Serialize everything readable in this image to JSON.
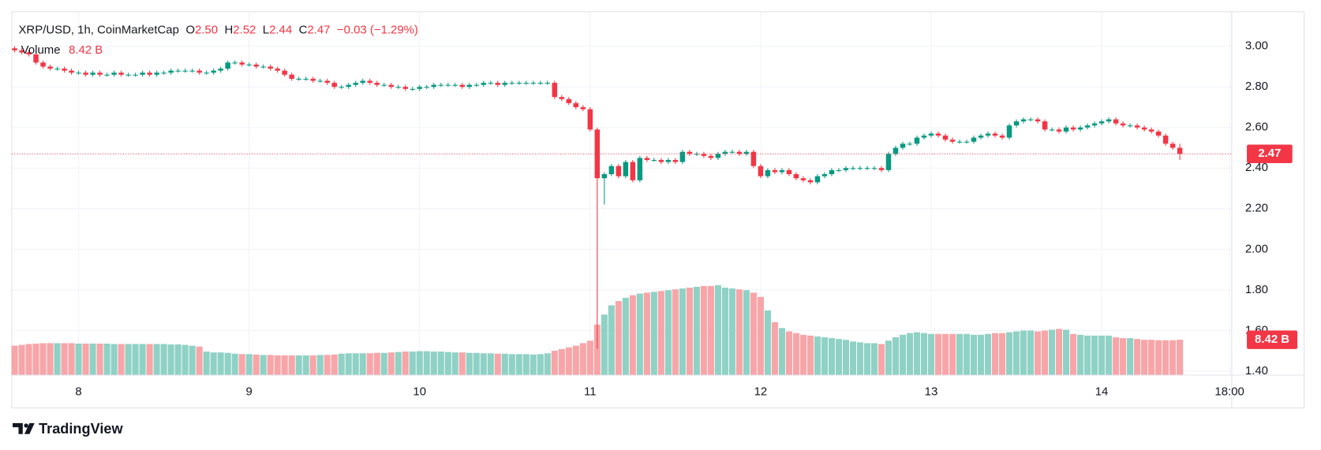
{
  "chart_data": {
    "type": "candlestick",
    "legend": {
      "symbol": "XRP/USD, 1h, CoinMarketCap",
      "open_label": "O",
      "open": "2.50",
      "high_label": "H",
      "high": "2.52",
      "low_label": "L",
      "low": "2.44",
      "close_label": "C",
      "close": "2.47",
      "change": "−0.03 (−1.29%)"
    },
    "up_color": "#089981",
    "down_color": "#f23645",
    "open": [
      2.99,
      2.98,
      2.97,
      2.96,
      2.92,
      2.9,
      2.89,
      2.89,
      2.88,
      2.87,
      2.87,
      2.86,
      2.87,
      2.86,
      2.86,
      2.87,
      2.86,
      2.86,
      2.86,
      2.87,
      2.86,
      2.87,
      2.87,
      2.88,
      2.88,
      2.88,
      2.88,
      2.87,
      2.87,
      2.88,
      2.89,
      2.92,
      2.92,
      2.91,
      2.91,
      2.9,
      2.9,
      2.89,
      2.88,
      2.86,
      2.84,
      2.84,
      2.84,
      2.83,
      2.83,
      2.82,
      2.8,
      2.8,
      2.81,
      2.82,
      2.83,
      2.82,
      2.81,
      2.81,
      2.8,
      2.8,
      2.79,
      2.79,
      2.8,
      2.8,
      2.81,
      2.81,
      2.81,
      2.81,
      2.8,
      2.81,
      2.81,
      2.82,
      2.82,
      2.81,
      2.82,
      2.82,
      2.82,
      2.82,
      2.82,
      2.82,
      2.82,
      2.75,
      2.74,
      2.72,
      2.7,
      2.69,
      2.59,
      2.35,
      2.37,
      2.41,
      2.36,
      2.43,
      2.34,
      2.45,
      2.44,
      2.44,
      2.43,
      2.44,
      2.43,
      2.48,
      2.47,
      2.47,
      2.46,
      2.45,
      2.47,
      2.48,
      2.48,
      2.47,
      2.48,
      2.41,
      2.36,
      2.39,
      2.38,
      2.39,
      2.37,
      2.35,
      2.34,
      2.33,
      2.36,
      2.37,
      2.39,
      2.39,
      2.4,
      2.4,
      2.4,
      2.4,
      2.4,
      2.39,
      2.47,
      2.5,
      2.52,
      2.52,
      2.55,
      2.56,
      2.57,
      2.56,
      2.54,
      2.53,
      2.53,
      2.53,
      2.55,
      2.56,
      2.57,
      2.56,
      2.55,
      2.61,
      2.63,
      2.64,
      2.64,
      2.63,
      2.59,
      2.59,
      2.58,
      2.6,
      2.59,
      2.6,
      2.61,
      2.62,
      2.63,
      2.64,
      2.62,
      2.61,
      2.61,
      2.6,
      2.59,
      2.58,
      2.56,
      2.52,
      2.5
    ],
    "high": [
      3.0,
      2.99,
      2.98,
      2.97,
      2.93,
      2.91,
      2.9,
      2.9,
      2.89,
      2.88,
      2.88,
      2.88,
      2.88,
      2.87,
      2.88,
      2.88,
      2.87,
      2.87,
      2.88,
      2.88,
      2.88,
      2.88,
      2.89,
      2.89,
      2.89,
      2.89,
      2.89,
      2.88,
      2.89,
      2.9,
      2.93,
      2.93,
      2.93,
      2.92,
      2.92,
      2.91,
      2.91,
      2.9,
      2.89,
      2.87,
      2.85,
      2.85,
      2.85,
      2.84,
      2.84,
      2.83,
      2.81,
      2.82,
      2.83,
      2.84,
      2.84,
      2.83,
      2.82,
      2.82,
      2.81,
      2.81,
      2.8,
      2.81,
      2.81,
      2.82,
      2.82,
      2.82,
      2.82,
      2.82,
      2.82,
      2.82,
      2.83,
      2.83,
      2.83,
      2.83,
      2.83,
      2.83,
      2.83,
      2.83,
      2.83,
      2.83,
      2.83,
      2.76,
      2.75,
      2.73,
      2.71,
      2.7,
      2.6,
      2.38,
      2.42,
      2.42,
      2.44,
      2.44,
      2.46,
      2.46,
      2.45,
      2.45,
      2.45,
      2.45,
      2.49,
      2.49,
      2.48,
      2.48,
      2.47,
      2.48,
      2.49,
      2.49,
      2.49,
      2.49,
      2.49,
      2.42,
      2.4,
      2.4,
      2.4,
      2.4,
      2.38,
      2.36,
      2.35,
      2.37,
      2.38,
      2.4,
      2.4,
      2.41,
      2.41,
      2.41,
      2.41,
      2.41,
      2.41,
      2.48,
      2.51,
      2.53,
      2.53,
      2.56,
      2.57,
      2.58,
      2.58,
      2.57,
      2.55,
      2.54,
      2.54,
      2.56,
      2.57,
      2.58,
      2.58,
      2.57,
      2.62,
      2.64,
      2.65,
      2.65,
      2.65,
      2.64,
      2.6,
      2.6,
      2.61,
      2.61,
      2.61,
      2.62,
      2.63,
      2.64,
      2.65,
      2.65,
      2.63,
      2.62,
      2.62,
      2.61,
      2.6,
      2.59,
      2.57,
      2.53,
      2.52
    ],
    "low": [
      2.97,
      2.96,
      2.95,
      2.91,
      2.89,
      2.88,
      2.88,
      2.87,
      2.86,
      2.86,
      2.85,
      2.85,
      2.85,
      2.85,
      2.85,
      2.85,
      2.85,
      2.85,
      2.85,
      2.85,
      2.85,
      2.86,
      2.86,
      2.87,
      2.87,
      2.87,
      2.86,
      2.86,
      2.86,
      2.87,
      2.88,
      2.91,
      2.9,
      2.9,
      2.89,
      2.89,
      2.88,
      2.87,
      2.85,
      2.83,
      2.83,
      2.83,
      2.82,
      2.82,
      2.81,
      2.79,
      2.79,
      2.79,
      2.8,
      2.81,
      2.81,
      2.8,
      2.8,
      2.79,
      2.79,
      2.78,
      2.78,
      2.78,
      2.79,
      2.79,
      2.8,
      2.8,
      2.8,
      2.79,
      2.79,
      2.8,
      2.8,
      2.81,
      2.8,
      2.8,
      2.81,
      2.81,
      2.81,
      2.81,
      2.81,
      2.81,
      2.74,
      2.73,
      2.71,
      2.69,
      2.68,
      2.58,
      1.51,
      2.22,
      2.36,
      2.35,
      2.35,
      2.33,
      2.33,
      2.43,
      2.43,
      2.42,
      2.42,
      2.42,
      2.42,
      2.46,
      2.46,
      2.45,
      2.44,
      2.44,
      2.46,
      2.47,
      2.46,
      2.46,
      2.4,
      2.35,
      2.35,
      2.37,
      2.37,
      2.36,
      2.34,
      2.33,
      2.32,
      2.32,
      2.35,
      2.36,
      2.38,
      2.38,
      2.39,
      2.39,
      2.39,
      2.39,
      2.38,
      2.38,
      2.46,
      2.49,
      2.51,
      2.51,
      2.54,
      2.55,
      2.55,
      2.53,
      2.52,
      2.52,
      2.52,
      2.52,
      2.54,
      2.55,
      2.55,
      2.54,
      2.54,
      2.6,
      2.62,
      2.63,
      2.62,
      2.58,
      2.58,
      2.57,
      2.57,
      2.58,
      2.58,
      2.59,
      2.6,
      2.61,
      2.62,
      2.61,
      2.6,
      2.6,
      2.59,
      2.58,
      2.57,
      2.55,
      2.51,
      2.49,
      2.44
    ],
    "close": [
      2.98,
      2.97,
      2.96,
      2.92,
      2.9,
      2.89,
      2.89,
      2.88,
      2.87,
      2.87,
      2.86,
      2.87,
      2.86,
      2.86,
      2.87,
      2.86,
      2.86,
      2.86,
      2.87,
      2.86,
      2.87,
      2.87,
      2.88,
      2.88,
      2.88,
      2.88,
      2.87,
      2.87,
      2.88,
      2.89,
      2.92,
      2.92,
      2.91,
      2.91,
      2.9,
      2.9,
      2.89,
      2.88,
      2.86,
      2.84,
      2.84,
      2.84,
      2.83,
      2.83,
      2.82,
      2.8,
      2.8,
      2.81,
      2.82,
      2.83,
      2.82,
      2.81,
      2.81,
      2.8,
      2.8,
      2.79,
      2.79,
      2.8,
      2.8,
      2.81,
      2.81,
      2.81,
      2.81,
      2.8,
      2.81,
      2.81,
      2.82,
      2.82,
      2.81,
      2.82,
      2.82,
      2.82,
      2.82,
      2.82,
      2.82,
      2.82,
      2.75,
      2.74,
      2.72,
      2.7,
      2.69,
      2.59,
      2.35,
      2.37,
      2.41,
      2.36,
      2.43,
      2.34,
      2.45,
      2.44,
      2.44,
      2.43,
      2.44,
      2.43,
      2.48,
      2.47,
      2.47,
      2.46,
      2.45,
      2.47,
      2.48,
      2.48,
      2.47,
      2.48,
      2.41,
      2.36,
      2.39,
      2.38,
      2.39,
      2.37,
      2.35,
      2.34,
      2.33,
      2.36,
      2.37,
      2.39,
      2.39,
      2.4,
      2.4,
      2.4,
      2.4,
      2.4,
      2.39,
      2.47,
      2.5,
      2.52,
      2.52,
      2.55,
      2.56,
      2.57,
      2.56,
      2.54,
      2.53,
      2.53,
      2.53,
      2.55,
      2.56,
      2.57,
      2.56,
      2.55,
      2.61,
      2.63,
      2.64,
      2.64,
      2.63,
      2.59,
      2.59,
      2.58,
      2.6,
      2.59,
      2.6,
      2.61,
      2.62,
      2.63,
      2.64,
      2.62,
      2.61,
      2.61,
      2.6,
      2.59,
      2.58,
      2.56,
      2.52,
      2.5,
      2.47
    ],
    "volume": {
      "name": "Volume",
      "last_label": "8.42 B",
      "up_color": "#8fd1c5",
      "down_color": "#f7a5a8",
      "values": [
        7.0,
        7.2,
        7.4,
        7.5,
        7.6,
        7.6,
        7.6,
        7.6,
        7.6,
        7.5,
        7.5,
        7.5,
        7.5,
        7.5,
        7.4,
        7.4,
        7.4,
        7.4,
        7.4,
        7.4,
        7.4,
        7.4,
        7.3,
        7.3,
        7.2,
        7.0,
        6.8,
        5.6,
        5.4,
        5.4,
        5.3,
        5.1,
        5.0,
        5.0,
        4.9,
        4.8,
        4.8,
        4.7,
        4.7,
        4.7,
        4.7,
        4.7,
        4.7,
        4.8,
        4.8,
        4.9,
        5.1,
        5.2,
        5.2,
        5.2,
        5.2,
        5.3,
        5.3,
        5.4,
        5.5,
        5.6,
        5.6,
        5.7,
        5.7,
        5.6,
        5.6,
        5.5,
        5.4,
        5.4,
        5.3,
        5.3,
        5.2,
        5.2,
        5.1,
        5.1,
        5.0,
        5.0,
        5.0,
        4.9,
        5.0,
        5.2,
        5.8,
        6.2,
        6.6,
        7.0,
        7.6,
        8.2,
        12.0,
        14.4,
        16.6,
        17.6,
        18.4,
        19.0,
        19.4,
        19.6,
        19.8,
        20.0,
        20.2,
        20.4,
        20.6,
        20.8,
        21.0,
        21.2,
        21.2,
        21.4,
        20.8,
        20.6,
        20.4,
        20.2,
        19.6,
        18.6,
        15.4,
        12.6,
        11.2,
        10.4,
        10.0,
        9.6,
        9.4,
        9.2,
        9.0,
        8.8,
        8.6,
        8.4,
        8.0,
        7.8,
        7.6,
        7.6,
        7.4,
        8.2,
        9.0,
        9.6,
        10.0,
        10.2,
        10.0,
        9.8,
        9.8,
        9.8,
        9.8,
        9.8,
        9.8,
        9.6,
        9.6,
        9.8,
        10.0,
        10.0,
        10.2,
        10.4,
        10.6,
        10.6,
        10.4,
        10.6,
        10.8,
        11.0,
        10.8,
        9.8,
        9.6,
        9.4,
        9.4,
        9.4,
        9.4,
        9.0,
        8.8,
        8.8,
        8.6,
        8.4,
        8.4,
        8.3,
        8.3,
        8.3,
        8.42
      ]
    },
    "ylim": [
      1.38,
      3.17
    ],
    "yticks": [
      {
        "value": 3.0,
        "label": "3.00"
      },
      {
        "value": 2.8,
        "label": "2.80"
      },
      {
        "value": 2.6,
        "label": "2.60"
      },
      {
        "value": 2.4,
        "label": "2.40"
      },
      {
        "value": 2.2,
        "label": "2.20"
      },
      {
        "value": 2.0,
        "label": "2.00"
      },
      {
        "value": 1.8,
        "label": "1.80"
      },
      {
        "value": 1.6,
        "label": "1.60"
      },
      {
        "value": 1.4,
        "label": "1.40"
      }
    ],
    "xlim": [
      -0.4,
      171.3
    ],
    "xticks": [
      {
        "value": 9,
        "label": "8"
      },
      {
        "value": 33,
        "label": "9"
      },
      {
        "value": 57,
        "label": "10"
      },
      {
        "value": 81,
        "label": "11"
      },
      {
        "value": 105,
        "label": "12"
      },
      {
        "value": 129,
        "label": "13"
      },
      {
        "value": 153,
        "label": "14"
      },
      {
        "value": 171,
        "label": "18:00"
      }
    ],
    "grid": true,
    "footer": "TradingView"
  }
}
